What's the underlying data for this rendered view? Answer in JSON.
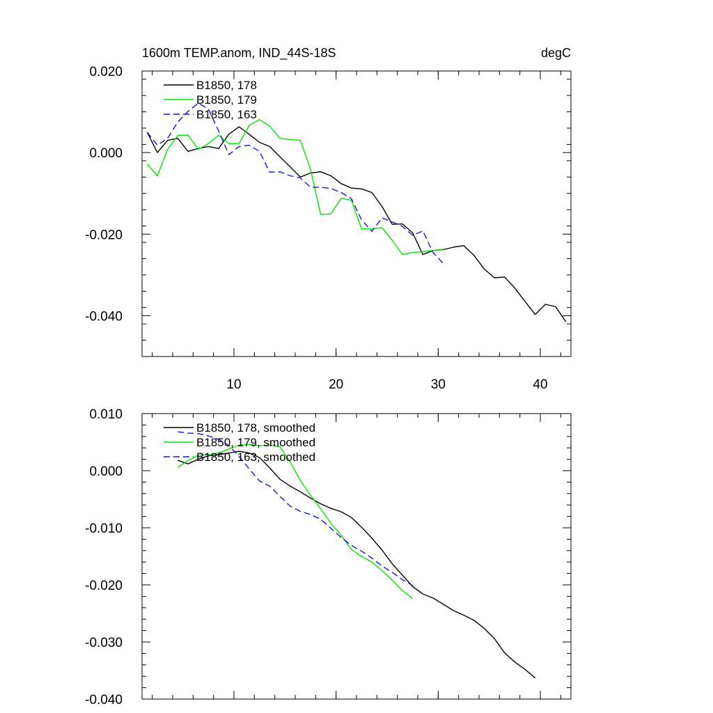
{
  "chart_data": [
    {
      "type": "line",
      "title": "1600m TEMP.anom, IND_44S-18S",
      "units": "degC",
      "xlim": [
        1,
        43
      ],
      "ylim": [
        -0.05,
        0.02
      ],
      "xticks": [
        10,
        20,
        30,
        40
      ],
      "xtick_labels": [
        "10",
        "20",
        "30",
        "40"
      ],
      "yticks": [
        0.02,
        0.0,
        -0.02,
        -0.04
      ],
      "ytick_labels": [
        "0.020",
        "0.000",
        "-0.020",
        "-0.040"
      ],
      "legend_position": "top-left",
      "series": [
        {
          "name": "B1850, 178",
          "color": "#000000",
          "dash": "solid",
          "x": [
            1.5,
            2.5,
            3.5,
            4.5,
            5.5,
            6.5,
            7.5,
            8.5,
            9.5,
            10.5,
            11.5,
            12.5,
            13.5,
            14.5,
            15.5,
            16.5,
            17.5,
            18.5,
            19.5,
            20.5,
            21.5,
            22.5,
            23.5,
            24.5,
            25.5,
            26.5,
            27.5,
            28.5,
            29.5,
            30.5,
            31.5,
            32.5,
            33.5,
            34.5,
            35.5,
            36.5,
            37.5,
            38.5,
            39.5,
            40.5,
            41.5,
            42.5
          ],
          "y": [
            0.005,
            0.0,
            0.003,
            0.0035,
            0.0003,
            0.001,
            0.0015,
            0.001,
            0.0045,
            0.0063,
            0.0045,
            0.0025,
            0.0015,
            -0.001,
            -0.0035,
            -0.006,
            -0.005,
            -0.0047,
            -0.0057,
            -0.0076,
            -0.0087,
            -0.0089,
            -0.0098,
            -0.0132,
            -0.0176,
            -0.0175,
            -0.0197,
            -0.025,
            -0.024,
            -0.0238,
            -0.0232,
            -0.0228,
            -0.0252,
            -0.0285,
            -0.0307,
            -0.0305,
            -0.0332,
            -0.0365,
            -0.0397,
            -0.0372,
            -0.0378,
            -0.0415
          ]
        },
        {
          "name": "B1850, 179",
          "color": "#00e600",
          "dash": "solid",
          "x": [
            1.5,
            2.5,
            3.5,
            4.5,
            5.5,
            6.5,
            7.5,
            8.5,
            9.5,
            10.5,
            11.5,
            12.5,
            13.5,
            14.5,
            15.5,
            16.5,
            17.5,
            18.5,
            19.5,
            20.5,
            21.5,
            22.5,
            23.5,
            24.5,
            25.5,
            26.5,
            27.5,
            28.5,
            29.5,
            30.5
          ],
          "y": [
            -0.0028,
            -0.0057,
            0.0008,
            0.0042,
            0.0043,
            0.0008,
            0.0022,
            0.0043,
            0.0022,
            0.0022,
            0.0067,
            0.0081,
            0.0065,
            0.0035,
            0.0032,
            0.003,
            -0.0041,
            -0.0152,
            -0.015,
            -0.0112,
            -0.0117,
            -0.0187,
            -0.0187,
            -0.0184,
            -0.0215,
            -0.025,
            -0.0245,
            -0.0243,
            -0.024,
            -0.0237
          ]
        },
        {
          "name": "B1850, 163",
          "color": "#1414dc",
          "dash": "dashed",
          "x": [
            1.5,
            2.5,
            3.5,
            4.5,
            5.5,
            6.5,
            7.5,
            8.5,
            9.5,
            10.5,
            11.5,
            12.5,
            13.5,
            14.5,
            15.5,
            16.5,
            17.5,
            18.5,
            19.5,
            20.5,
            21.5,
            22.5,
            23.5,
            24.5,
            25.5,
            26.5,
            27.5,
            28.5,
            29.5,
            30.5
          ],
          "y": [
            0.005,
            0.0018,
            0.0035,
            0.0075,
            0.0101,
            0.0121,
            0.0107,
            0.0053,
            -0.0005,
            0.0015,
            0.0018,
            0.0003,
            -0.0048,
            -0.0047,
            -0.0057,
            -0.0062,
            -0.0085,
            -0.0085,
            -0.0088,
            -0.0098,
            -0.0113,
            -0.0165,
            -0.0193,
            -0.016,
            -0.017,
            -0.0181,
            -0.0203,
            -0.0192,
            -0.0245,
            -0.0272
          ]
        }
      ]
    },
    {
      "type": "line",
      "xlim": [
        1,
        43
      ],
      "ylim": [
        -0.04,
        0.01
      ],
      "xticks": [
        10,
        20,
        30,
        40
      ],
      "yticks": [
        0.01,
        0.0,
        -0.01,
        -0.02,
        -0.03,
        -0.04
      ],
      "ytick_labels": [
        "0.010",
        "0.000",
        "-0.010",
        "-0.020",
        "-0.030",
        "-0.040"
      ],
      "legend_position": "top-left",
      "series": [
        {
          "name": "B1850, 178, smoothed",
          "color": "#000000",
          "dash": "solid",
          "x": [
            4.5,
            5.5,
            6.5,
            7.5,
            8.5,
            9.5,
            10.5,
            11.5,
            12.5,
            13.5,
            14.5,
            15.5,
            16.5,
            17.5,
            18.5,
            19.5,
            20.5,
            21.5,
            22.5,
            23.5,
            24.5,
            25.5,
            26.5,
            27.5,
            28.5,
            29.5,
            30.5,
            31.5,
            32.5,
            33.5,
            34.5,
            35.5,
            36.5,
            37.5,
            38.5,
            39.5
          ],
          "y": [
            0.0018,
            0.0012,
            0.002,
            0.0026,
            0.0028,
            0.0031,
            0.0034,
            0.0031,
            0.0023,
            0.0005,
            -0.0015,
            -0.0027,
            -0.0037,
            -0.0048,
            -0.0058,
            -0.0066,
            -0.0072,
            -0.0082,
            -0.0099,
            -0.0118,
            -0.0139,
            -0.0163,
            -0.0183,
            -0.0203,
            -0.0216,
            -0.0223,
            -0.0234,
            -0.0245,
            -0.0253,
            -0.0262,
            -0.0276,
            -0.0294,
            -0.0319,
            -0.0335,
            -0.0348,
            -0.0363
          ]
        },
        {
          "name": "B1850, 179, smoothed",
          "color": "#00e600",
          "dash": "solid",
          "x": [
            4.5,
            5.5,
            6.5,
            7.5,
            8.5,
            9.5,
            10.5,
            11.5,
            12.5,
            13.5,
            14.5,
            15.5,
            16.5,
            17.5,
            18.5,
            19.5,
            20.5,
            21.5,
            22.5,
            23.5,
            24.5,
            25.5,
            26.5,
            27.5
          ],
          "y": [
            0.0006,
            0.0018,
            0.0027,
            0.0028,
            0.0031,
            0.0038,
            0.0045,
            0.0046,
            0.0044,
            0.0045,
            0.0042,
            0.0015,
            -0.0017,
            -0.0043,
            -0.0067,
            -0.0092,
            -0.0113,
            -0.0138,
            -0.015,
            -0.016,
            -0.0175,
            -0.0192,
            -0.021,
            -0.0224
          ]
        },
        {
          "name": "B1850, 163, smoothed",
          "color": "#1414dc",
          "dash": "dashed",
          "x": [
            4.5,
            5.5,
            6.5,
            7.5,
            8.5,
            9.5,
            10.5,
            11.5,
            12.5,
            13.5,
            14.5,
            15.5,
            16.5,
            17.5,
            18.5,
            19.5,
            20.5,
            21.5,
            22.5,
            23.5,
            24.5,
            25.5,
            26.5,
            27.5
          ],
          "y": [
            0.0068,
            0.0066,
            0.0065,
            0.0061,
            0.0055,
            0.0044,
            0.0025,
            0.0003,
            -0.0018,
            -0.0027,
            -0.0045,
            -0.0062,
            -0.0071,
            -0.0077,
            -0.0085,
            -0.0101,
            -0.0117,
            -0.0131,
            -0.0141,
            -0.0153,
            -0.0167,
            -0.0178,
            -0.0191,
            -0.0201
          ]
        }
      ]
    }
  ]
}
